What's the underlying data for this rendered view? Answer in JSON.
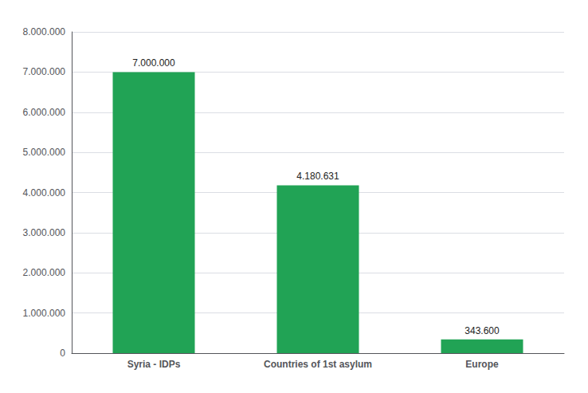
{
  "chart_data": {
    "type": "bar",
    "categories": [
      "Syria - IDPs",
      "Countries of 1st asylum",
      "Europe"
    ],
    "values": [
      7000000,
      4180631,
      343600
    ],
    "value_labels": [
      "7.000.000",
      "4.180.631",
      "343.600"
    ],
    "data_labels": true,
    "color": "#21a355",
    "ylim": [
      0,
      8000000
    ],
    "yticks": [
      0,
      {
        "value": 1000000,
        "label": "1.000.000"
      },
      {
        "value": 2000000,
        "label": "2.000.000"
      },
      {
        "value": 3000000,
        "label": "3.000.000"
      },
      {
        "value": 4000000,
        "label": "4.000.000"
      },
      {
        "value": 5000000,
        "label": "5.000.000"
      },
      {
        "value": 6000000,
        "label": "6.000.000"
      },
      {
        "value": 7000000,
        "label": "7.000.000"
      },
      {
        "value": 8000000,
        "label": "8.000.000"
      }
    ],
    "grid": true
  }
}
